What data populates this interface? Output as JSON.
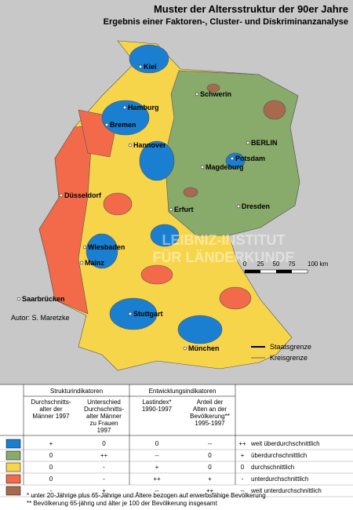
{
  "header": {
    "title": "Muster der Altersstruktur der 90er Jahre",
    "subtitle": "Ergebnis einer Faktoren-, Cluster- und Diskriminanzanalyse"
  },
  "cities": [
    "Kiel",
    "Schwerin",
    "Hamburg",
    "Bremen",
    "BERLIN",
    "Hannover",
    "Potsdam",
    "Magdeburg",
    "Düsseldorf",
    "Erfurt",
    "Dresden",
    "Wiesbaden",
    "Mainz",
    "Saarbrücken",
    "Stuttgart",
    "München"
  ],
  "watermark": [
    "LEIBNIZ-INSTITUT",
    "FÜR LÄNDERKUNDE"
  ],
  "author": "Autor:  S. Maretzke",
  "scale": [
    "0",
    "25",
    "50",
    "75",
    "100 km"
  ],
  "borders": [
    "Staatsgrenze",
    "Kreisgrenze"
  ],
  "table": {
    "groups": [
      "Strukturindikatoren",
      "Entwicklungsindikatoren"
    ],
    "columns": [
      [
        "Durchschnitts-",
        "alter der",
        "Männer 1997"
      ],
      [
        "Unterschied",
        "Durchschnitts-",
        "alter Männer",
        "zu Frauen",
        "1997"
      ],
      [
        "Lastindex*",
        "1990-1997"
      ],
      [
        "Anteil der",
        "Alten an der",
        "Bevölkerung**",
        "1995-1997"
      ]
    ],
    "rows": [
      {
        "color": "#1a7fd0",
        "cells": [
          "+",
          "0",
          "0",
          "--"
        ],
        "sign": "++",
        "label": "weit überdurchschnittlich"
      },
      {
        "color": "#88aa6a",
        "cells": [
          "0",
          "++",
          "--",
          "0"
        ],
        "sign": "+",
        "label": "überdurchschnittlich"
      },
      {
        "color": "#f7d54a",
        "cells": [
          "0",
          "-",
          "+",
          "0"
        ],
        "sign": "0",
        "label": "durchschnittlich"
      },
      {
        "color": "#f26a4a",
        "cells": [
          "0",
          "-",
          "++",
          "+"
        ],
        "sign": "-",
        "label": "unterdurchschnittlich"
      },
      {
        "color": "#a86a4e",
        "cells": [
          "-",
          "+",
          "--",
          "++"
        ],
        "sign": "--",
        "label": "weit unterdurchschnittlich"
      }
    ]
  },
  "footnotes": [
    "*  unter 20-Jährige plus 65-Jährige und Ältere bezogen auf erwerbsfähige Bevölkerung",
    "**  Bevölkerung 65-jährig und älter je 100 der Bevölkerung insgesamt"
  ]
}
